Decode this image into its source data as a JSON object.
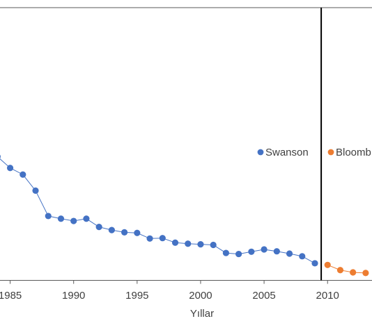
{
  "chart_data": {
    "type": "line",
    "title": "",
    "xlabel": "Yıllar",
    "ylabel": "",
    "x_ticks": [
      "1985",
      "1990",
      "1995",
      "2000",
      "2005",
      "2010"
    ],
    "xlim": [
      1984.2,
      2013.5
    ],
    "ylim": [
      0,
      100
    ],
    "grid": false,
    "legend": {
      "placement": "right"
    },
    "divider_year": 2009.5,
    "series": [
      {
        "name": "Swanson",
        "color": "#4472C4",
        "x": [
          1984,
          1985,
          1986,
          1987,
          1988,
          1989,
          1990,
          1991,
          1992,
          1993,
          1994,
          1995,
          1996,
          1997,
          1998,
          1999,
          2000,
          2001,
          2002,
          2003,
          2004,
          2005,
          2006,
          2007,
          2008,
          2009
        ],
        "y": [
          56.1,
          50.6,
          47.4,
          39.6,
          27.3,
          26.0,
          24.9,
          26.0,
          22.0,
          20.5,
          19.4,
          19.1,
          16.4,
          16.6,
          14.4,
          13.9,
          13.6,
          13.3,
          9.4,
          8.9,
          10.0,
          11.1,
          10.2,
          9.1,
          7.8,
          4.4
        ]
      },
      {
        "name": "Bloomb",
        "color": "#ED7D31",
        "x": [
          2010,
          2011,
          2012,
          2013
        ],
        "y": [
          3.6,
          1.1,
          0.0,
          -0.3
        ]
      }
    ]
  }
}
